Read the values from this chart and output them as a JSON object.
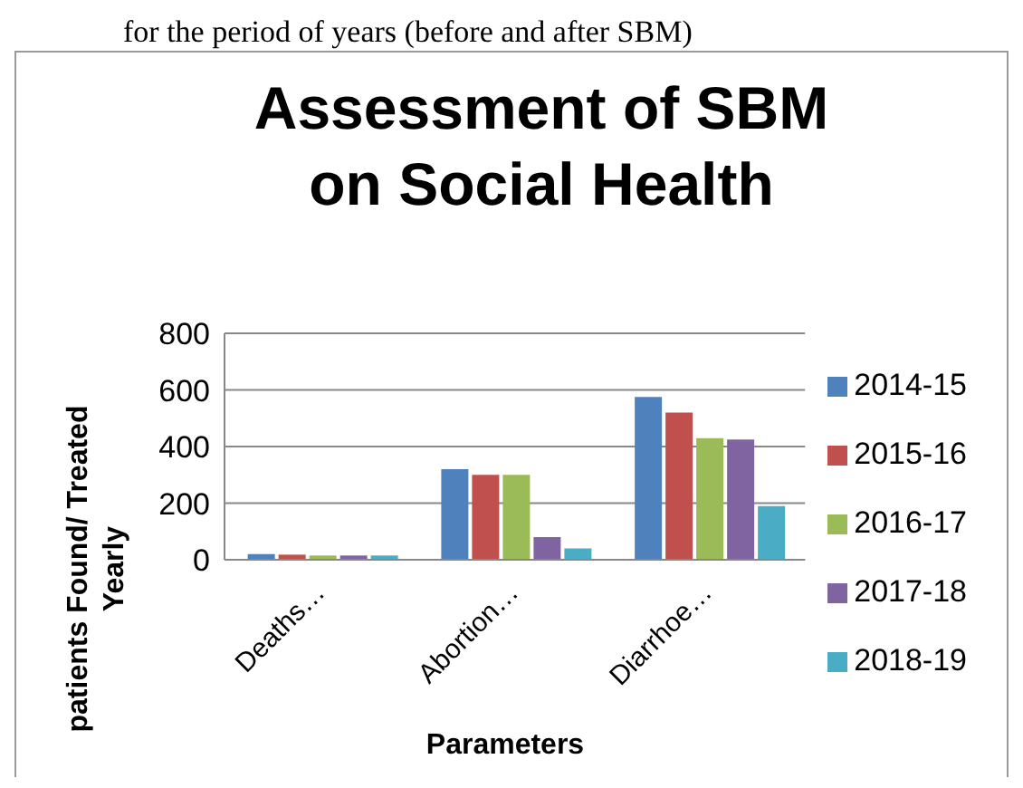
{
  "chart_data": {
    "type": "bar",
    "title": "Assessment of SBM on Social Health",
    "xlabel": "Parameters",
    "ylabel": "patients Found/ Treated Yearly",
    "annotations": [
      "for the period of years (before and after SBM)"
    ],
    "categories": [
      "Deaths…",
      "Abortion…",
      "Diarrhoe…"
    ],
    "series": [
      {
        "name": "2014-15",
        "color": "#4f81bd",
        "values": [
          20,
          320,
          575
        ]
      },
      {
        "name": "2015-16",
        "color": "#c0504d",
        "values": [
          18,
          300,
          520
        ]
      },
      {
        "name": "2016-17",
        "color": "#9bbb59",
        "values": [
          15,
          300,
          430
        ]
      },
      {
        "name": "2017-18",
        "color": "#8064a2",
        "values": [
          15,
          80,
          425
        ]
      },
      {
        "name": "2018-19",
        "color": "#4bacc6",
        "values": [
          15,
          40,
          190
        ]
      }
    ],
    "ylim": [
      0,
      800
    ],
    "yticks": [
      0,
      200,
      400,
      600,
      800
    ],
    "grid": "y",
    "legend": "right"
  }
}
